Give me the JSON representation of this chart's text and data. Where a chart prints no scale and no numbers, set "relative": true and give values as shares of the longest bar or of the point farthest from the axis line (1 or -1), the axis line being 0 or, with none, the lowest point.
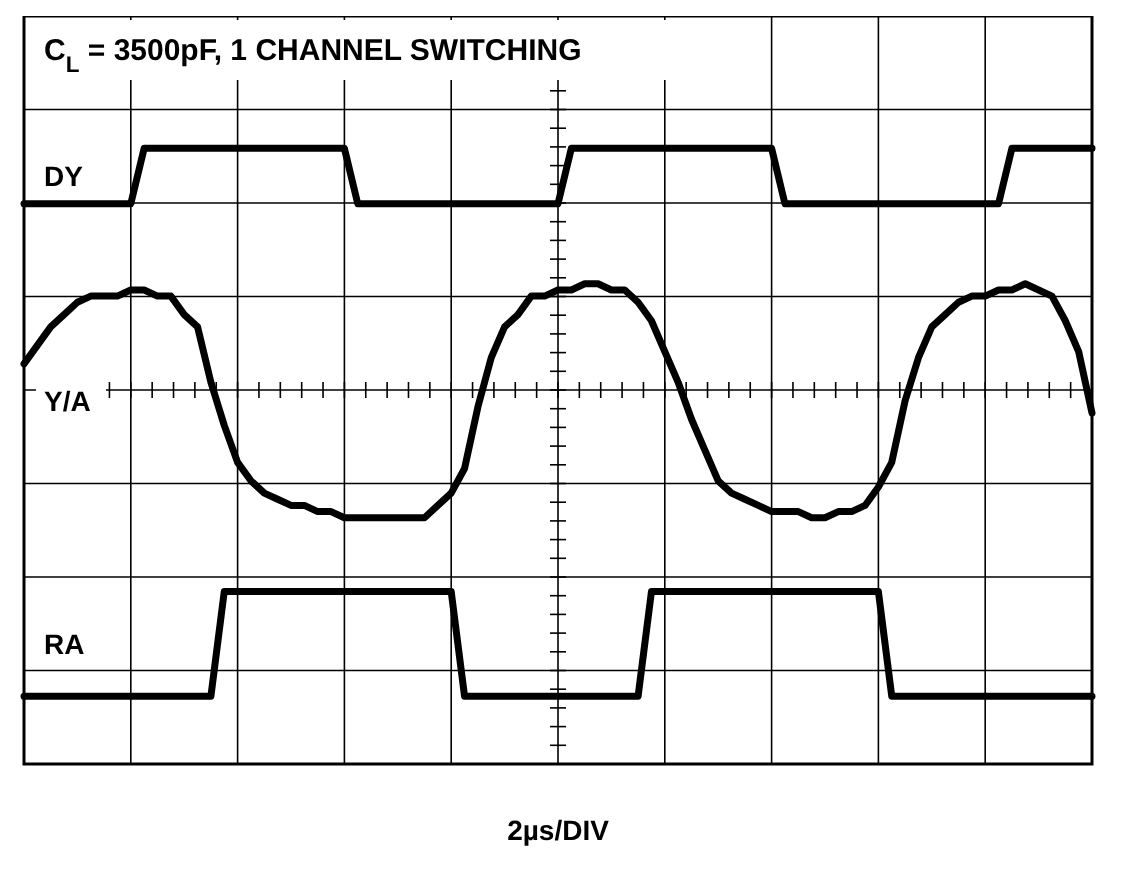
{
  "chart_data": {
    "type": "line",
    "title": "C$_{L}$ = 3500pF, 1 CHANNEL SWITCHING",
    "xlabel": "2µs/DIV",
    "relative": true,
    "categories": [
      null,
      null,
      null,
      null,
      null,
      null,
      null,
      null,
      null,
      null,
      null,
      null,
      null,
      null,
      null,
      null,
      null,
      null,
      null,
      null,
      null,
      null,
      null,
      null,
      null,
      null,
      null,
      null,
      null,
      null,
      null,
      null,
      null,
      null,
      null,
      null,
      null,
      null,
      null,
      null,
      null,
      null,
      null,
      null,
      null,
      null,
      null,
      null,
      null,
      null,
      null,
      null,
      null,
      null,
      null,
      null,
      null,
      null,
      null,
      null,
      null,
      null,
      null,
      null,
      null,
      null,
      null,
      null,
      null,
      null,
      null,
      null,
      null,
      null,
      null,
      null,
      null,
      null,
      null,
      null,
      null
    ],
    "grid": true,
    "legend": "left",
    "marker": "none",
    "line_style": "solid",
    "series": [
      {
        "name": "DY",
        "color": "#000000",
        "values": [
          0.91,
          0.91,
          0.91,
          0.91,
          0.91,
          0.91,
          0.91,
          0.91,
          0.91,
          1,
          1,
          1,
          1,
          1,
          1,
          1,
          1,
          1,
          1,
          1,
          1,
          1,
          1,
          1,
          1,
          0.91,
          0.91,
          0.91,
          0.91,
          0.91,
          0.91,
          0.91,
          0.91,
          0.91,
          0.91,
          0.91,
          0.91,
          0.91,
          0.91,
          0.91,
          0.91,
          1,
          1,
          1,
          1,
          1,
          1,
          1,
          1,
          1,
          1,
          1,
          1,
          1,
          1,
          1,
          1,
          0.91,
          0.91,
          0.91,
          0.91,
          0.91,
          0.91,
          0.91,
          0.91,
          0.91,
          0.91,
          0.91,
          0.91,
          0.91,
          0.91,
          0.91,
          0.91,
          0.91,
          1,
          1,
          1,
          1,
          1,
          1,
          1
        ]
      },
      {
        "name": "Y/A",
        "color": "#000000",
        "values": [
          0.65,
          0.68,
          0.71,
          0.73,
          0.75,
          0.76,
          0.76,
          0.76,
          0.77,
          0.77,
          0.76,
          0.76,
          0.73,
          0.71,
          0.62,
          0.55,
          0.49,
          0.46,
          0.44,
          0.43,
          0.42,
          0.42,
          0.41,
          0.41,
          0.4,
          0.4,
          0.4,
          0.4,
          0.4,
          0.4,
          0.4,
          0.42,
          0.44,
          0.48,
          0.58,
          0.66,
          0.71,
          0.73,
          0.76,
          0.76,
          0.77,
          0.77,
          0.78,
          0.78,
          0.77,
          0.77,
          0.75,
          0.72,
          0.67,
          0.62,
          0.56,
          0.51,
          0.46,
          0.44,
          0.43,
          0.42,
          0.41,
          0.41,
          0.41,
          0.4,
          0.4,
          0.41,
          0.41,
          0.42,
          0.45,
          0.49,
          0.59,
          0.66,
          0.71,
          0.73,
          0.75,
          0.76,
          0.76,
          0.77,
          0.77,
          0.78,
          0.77,
          0.76,
          0.72,
          0.67,
          0.57
        ]
      },
      {
        "name": "RA",
        "color": "#000000",
        "values": [
          0.11,
          0.11,
          0.11,
          0.11,
          0.11,
          0.11,
          0.11,
          0.11,
          0.11,
          0.11,
          0.11,
          0.11,
          0.11,
          0.11,
          0.11,
          0.28,
          0.28,
          0.28,
          0.28,
          0.28,
          0.28,
          0.28,
          0.28,
          0.28,
          0.28,
          0.28,
          0.28,
          0.28,
          0.28,
          0.28,
          0.28,
          0.28,
          0.28,
          0.11,
          0.11,
          0.11,
          0.11,
          0.11,
          0.11,
          0.11,
          0.11,
          0.11,
          0.11,
          0.11,
          0.11,
          0.11,
          0.11,
          0.28,
          0.28,
          0.28,
          0.28,
          0.28,
          0.28,
          0.28,
          0.28,
          0.28,
          0.28,
          0.28,
          0.28,
          0.28,
          0.28,
          0.28,
          0.28,
          0.28,
          0.28,
          0.11,
          0.11,
          0.11,
          0.11,
          0.11,
          0.11,
          0.11,
          0.11,
          0.11,
          0.11,
          0.11,
          0.11,
          0.11,
          0.11,
          0.11,
          0.11
        ]
      }
    ]
  }
}
